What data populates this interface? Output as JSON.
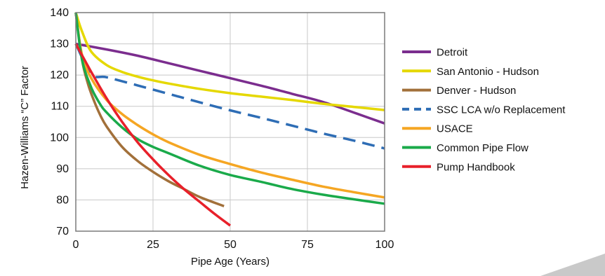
{
  "chart_data": {
    "type": "line",
    "xlabel": "Pipe Age (Years)",
    "ylabel": "Hazen-Williams “C” Factor",
    "xlim": [
      0,
      100
    ],
    "ylim": [
      70,
      140
    ],
    "xticks": [
      0,
      25,
      50,
      75,
      100
    ],
    "yticks": [
      70,
      80,
      90,
      100,
      110,
      120,
      130,
      140
    ],
    "grid": true,
    "legend_position": "right",
    "series": [
      {
        "name": "Detroit",
        "color": "#7b2d8e",
        "dash": false,
        "x": [
          0,
          10,
          20,
          30,
          40,
          50,
          60,
          70,
          80,
          90,
          100
        ],
        "y": [
          130,
          128.2,
          126.2,
          123.8,
          121.4,
          119,
          116.6,
          114,
          111.4,
          108,
          104.5
        ]
      },
      {
        "name": "San Antonio - Hudson",
        "color": "#e5d800",
        "dash": false,
        "x": [
          0,
          2,
          5,
          10,
          15,
          20,
          25,
          30,
          40,
          50,
          60,
          70,
          80,
          90,
          100
        ],
        "y": [
          140,
          134,
          127.5,
          123.2,
          121,
          119.5,
          118.3,
          117.3,
          115.6,
          114.2,
          113.1,
          112,
          110.8,
          109.8,
          108.8
        ]
      },
      {
        "name": "Denver - Hudson",
        "color": "#a2703a",
        "dash": false,
        "x": [
          0,
          2,
          4,
          6,
          8,
          10,
          15,
          20,
          25,
          30,
          35,
          40,
          48
        ],
        "y": [
          140,
          125,
          117,
          111.5,
          107,
          103.5,
          97,
          92.5,
          89,
          86,
          83.5,
          81,
          78
        ]
      },
      {
        "name": "SSC LCA w/o Replacement",
        "color": "#2e6db5",
        "dash": true,
        "x": [
          0,
          5,
          10,
          20,
          30,
          40,
          50,
          60,
          70,
          80,
          90,
          100
        ],
        "y": [
          130,
          120.3,
          119.3,
          116.7,
          114,
          111.3,
          108.7,
          106.3,
          103.8,
          101.3,
          99,
          96.5
        ]
      },
      {
        "name": "USACE",
        "color": "#f5a623",
        "dash": false,
        "x": [
          0,
          2,
          5,
          10,
          15,
          20,
          25,
          30,
          40,
          50,
          60,
          70,
          80,
          90,
          100
        ],
        "y": [
          140,
          126.5,
          119,
          112,
          107.5,
          104,
          101,
          98.5,
          94.5,
          91.5,
          88.8,
          86.5,
          84.3,
          82.5,
          80.8
        ]
      },
      {
        "name": "Common Pipe Flow",
        "color": "#1aaa4a",
        "dash": false,
        "x": [
          0,
          2,
          5,
          8,
          10,
          15,
          20,
          25,
          30,
          40,
          50,
          60,
          70,
          80,
          90,
          100
        ],
        "y": [
          140,
          125,
          116,
          110.5,
          108,
          103.2,
          99.5,
          97,
          95,
          91,
          88,
          85.8,
          83.5,
          81.7,
          80.2,
          78.8
        ]
      },
      {
        "name": "Pump Handbook",
        "color": "#e8202a",
        "dash": false,
        "x": [
          0,
          5,
          10,
          15,
          20,
          25,
          30,
          35,
          40,
          45,
          50
        ],
        "y": [
          130,
          121,
          112.5,
          105,
          98.5,
          93,
          88,
          83.5,
          79.5,
          75.5,
          71.8
        ]
      }
    ]
  }
}
